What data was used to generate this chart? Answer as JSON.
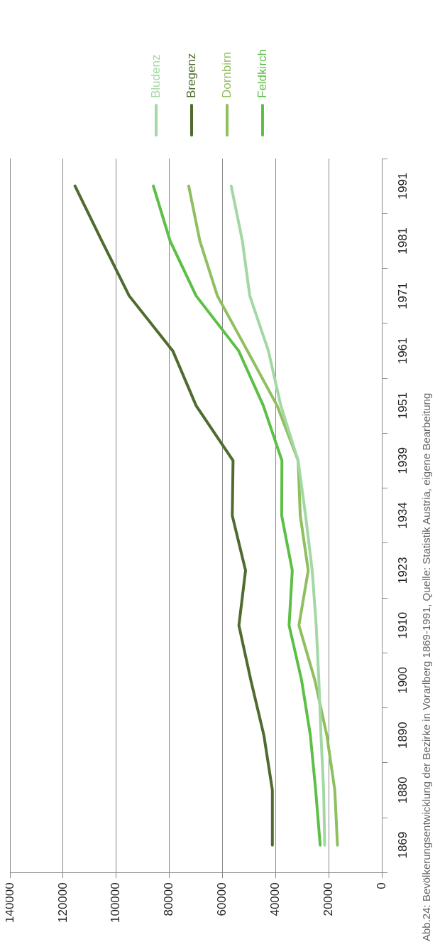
{
  "chart_data": {
    "type": "line",
    "orientation": "horizontal",
    "categories": [
      "1991",
      "1981",
      "1971",
      "1961",
      "1951",
      "1939",
      "1934",
      "1923",
      "1910",
      "1900",
      "1890",
      "1880",
      "1869"
    ],
    "series": [
      {
        "name": "Bludenz",
        "color": "#a3d8a4",
        "values": [
          56700,
          52500,
          49700,
          42700,
          38000,
          31500,
          28700,
          26200,
          24700,
          23700,
          22900,
          21900,
          21500
        ]
      },
      {
        "name": "Bregenz",
        "color": "#4f6b2f",
        "values": [
          115500,
          105400,
          95100,
          78700,
          69900,
          56000,
          56300,
          51300,
          53800,
          49300,
          44400,
          41200,
          41200
        ]
      },
      {
        "name": "Dornbirn",
        "color": "#8fbf5f",
        "values": [
          72700,
          68500,
          61900,
          50600,
          39400,
          31500,
          30700,
          27700,
          31200,
          25200,
          20700,
          17700,
          16700
        ]
      },
      {
        "name": "Feldkirch",
        "color": "#5cbf46",
        "values": [
          86000,
          79700,
          69900,
          53900,
          44600,
          37600,
          37700,
          33700,
          34900,
          30200,
          26900,
          24900,
          23200
        ]
      }
    ],
    "xlim": [
      140000,
      0
    ],
    "xticks": [
      0,
      20000,
      40000,
      60000,
      80000,
      100000,
      120000,
      140000
    ],
    "grid": "x",
    "legend": "right",
    "marker": "none",
    "line_style": "solid",
    "annotations": [
      "Abb.24: Bevölkerungsentwicklung der Bezirke in Vorarlberg 1869-1991, Quelle: Statistik Austria, eigene Bearbeitung"
    ]
  }
}
